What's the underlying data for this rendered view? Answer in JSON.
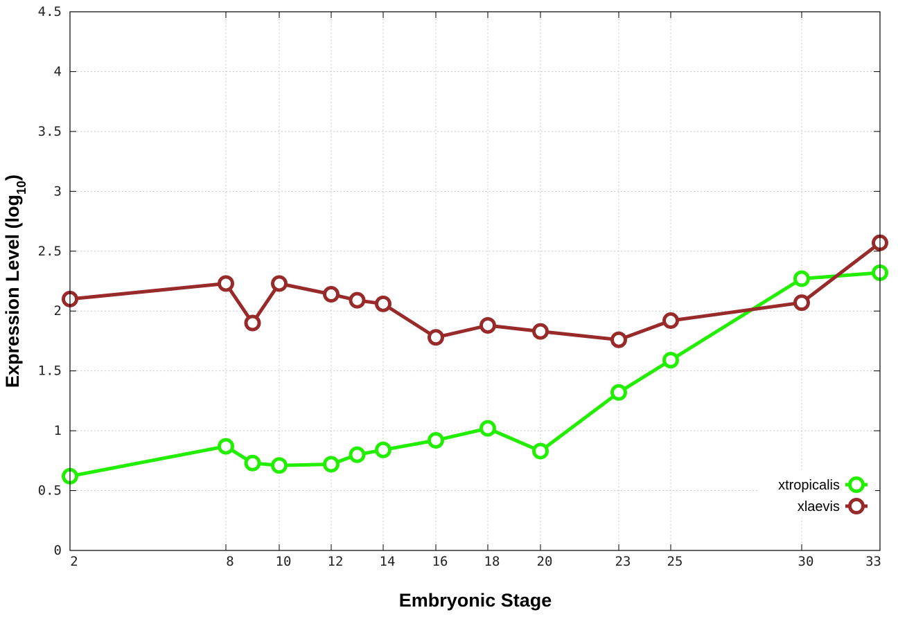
{
  "chart_data": {
    "type": "line",
    "title": "",
    "xlabel": "Embryonic Stage",
    "ylabel_main": "Expression Level (log",
    "ylabel_sub": "10",
    "ylabel_close": ")",
    "x_ticks": [
      2,
      8,
      10,
      12,
      14,
      16,
      18,
      20,
      23,
      25,
      30,
      33
    ],
    "y_ticks": [
      "0",
      "0.5",
      "1",
      "1.5",
      "2",
      "2.5",
      "3",
      "3.5",
      "4",
      "4.5"
    ],
    "xlim": [
      2,
      33
    ],
    "ylim": [
      0,
      4.5
    ],
    "grid": true,
    "legend_position": "bottom-right",
    "series": [
      {
        "name": "xtropicalis",
        "color": "#22ee00",
        "x": [
          2,
          8,
          9,
          10,
          12,
          13,
          14,
          16,
          18,
          20,
          23,
          25,
          30,
          33
        ],
        "y": [
          0.62,
          0.87,
          0.73,
          0.71,
          0.72,
          0.8,
          0.84,
          0.92,
          1.02,
          0.83,
          1.32,
          1.59,
          2.27,
          2.32
        ]
      },
      {
        "name": "xlaevis",
        "color": "#992a2a",
        "x": [
          2,
          8,
          9,
          10,
          12,
          13,
          14,
          16,
          18,
          20,
          23,
          25,
          30,
          33
        ],
        "y": [
          2.1,
          2.23,
          1.9,
          2.23,
          2.14,
          2.09,
          2.06,
          1.78,
          1.88,
          1.83,
          1.76,
          1.92,
          2.07,
          2.57
        ]
      }
    ]
  }
}
